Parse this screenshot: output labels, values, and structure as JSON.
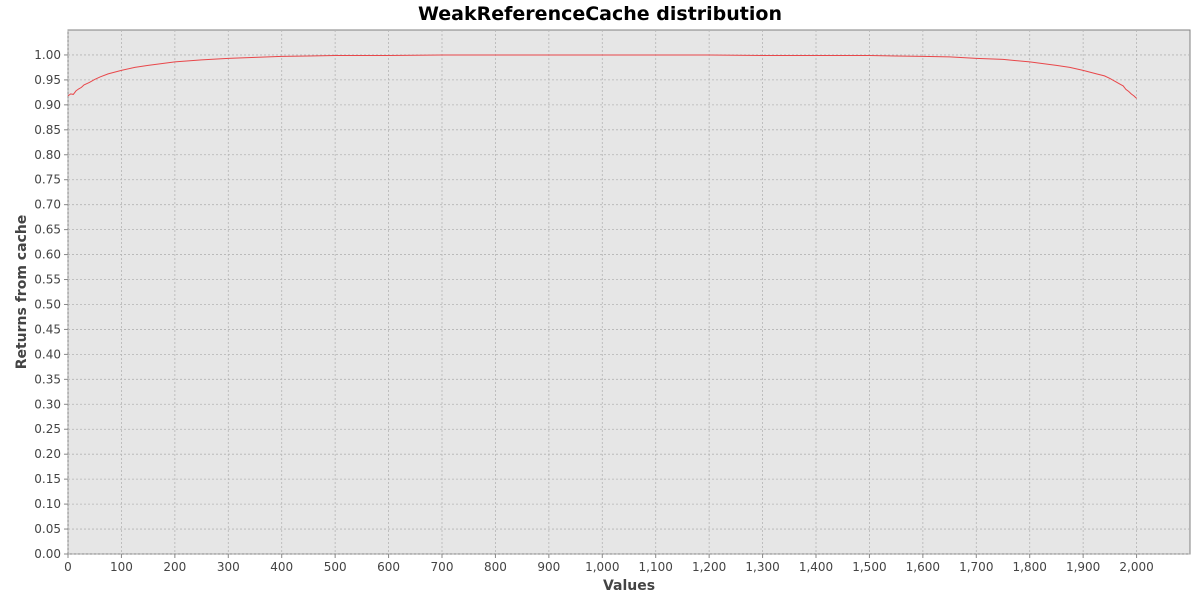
{
  "chart_data": {
    "type": "line",
    "title": "WeakReferenceCache distribution",
    "xlabel": "Values",
    "ylabel": "Returns from cache",
    "xlim": [
      0,
      2100
    ],
    "ylim": [
      0.0,
      1.05
    ],
    "x_ticks": [
      0,
      100,
      200,
      300,
      400,
      500,
      600,
      700,
      800,
      900,
      1000,
      1100,
      1200,
      1300,
      1400,
      1500,
      1600,
      1700,
      1800,
      1900,
      2000
    ],
    "x_tick_labels": [
      "0",
      "100",
      "200",
      "300",
      "400",
      "500",
      "600",
      "700",
      "800",
      "900",
      "1,000",
      "1,100",
      "1,200",
      "1,300",
      "1,400",
      "1,500",
      "1,600",
      "1,700",
      "1,800",
      "1,900",
      "2,000"
    ],
    "y_ticks": [
      0.0,
      0.05,
      0.1,
      0.15,
      0.2,
      0.25,
      0.3,
      0.35,
      0.4,
      0.45,
      0.5,
      0.55,
      0.6,
      0.65,
      0.7,
      0.75,
      0.8,
      0.85,
      0.9,
      0.95,
      1.0
    ],
    "y_tick_labels": [
      "0.00",
      "0.05",
      "0.10",
      "0.15",
      "0.20",
      "0.25",
      "0.30",
      "0.35",
      "0.40",
      "0.45",
      "0.50",
      "0.55",
      "0.60",
      "0.65",
      "0.70",
      "0.75",
      "0.80",
      "0.85",
      "0.90",
      "0.95",
      "1.00"
    ],
    "grid": true,
    "legend": "none",
    "series": [
      {
        "color": "#e8474a",
        "x": [
          0,
          5,
          10,
          15,
          20,
          25,
          30,
          40,
          50,
          60,
          75,
          100,
          125,
          150,
          200,
          250,
          300,
          350,
          400,
          450,
          500,
          600,
          700,
          800,
          900,
          1000,
          1100,
          1200,
          1300,
          1400,
          1500,
          1550,
          1600,
          1650,
          1700,
          1750,
          1800,
          1850,
          1875,
          1900,
          1925,
          1940,
          1950,
          1960,
          1970,
          1975,
          1980,
          1985,
          1990,
          1995,
          2000
        ],
        "y": [
          0.918,
          0.922,
          0.921,
          0.928,
          0.932,
          0.935,
          0.94,
          0.945,
          0.951,
          0.956,
          0.962,
          0.969,
          0.975,
          0.979,
          0.986,
          0.99,
          0.993,
          0.995,
          0.997,
          0.998,
          0.999,
          0.999,
          1.0,
          1.0,
          1.0,
          1.0,
          1.0,
          1.0,
          0.999,
          0.999,
          0.999,
          0.998,
          0.997,
          0.996,
          0.993,
          0.991,
          0.986,
          0.979,
          0.975,
          0.969,
          0.962,
          0.958,
          0.953,
          0.947,
          0.941,
          0.938,
          0.931,
          0.927,
          0.922,
          0.918,
          0.913
        ]
      }
    ]
  }
}
